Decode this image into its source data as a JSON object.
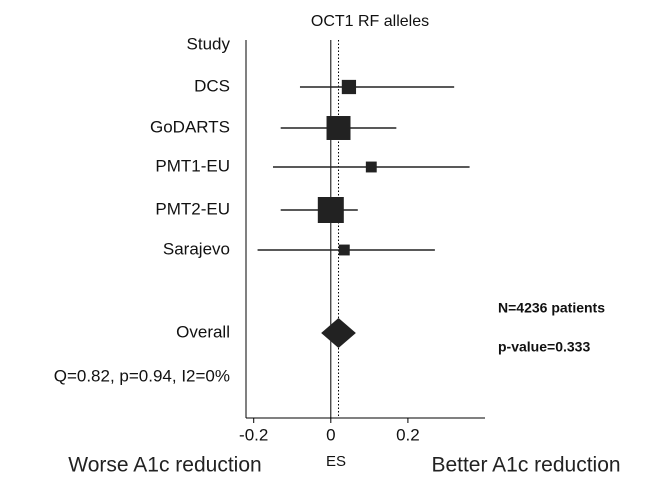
{
  "chart_data": {
    "type": "forest",
    "title": "OCT1 RF alleles",
    "column_label": "Study",
    "categories": [
      "DCS",
      "GoDARTS",
      "PMT1-EU",
      "PMT2-EU",
      "Sarajevo"
    ],
    "values": [
      0.047,
      0.02,
      0.105,
      0.0,
      0.035
    ],
    "lower": [
      -0.08,
      -0.13,
      -0.15,
      -0.13,
      -0.19
    ],
    "upper": [
      0.32,
      0.17,
      0.36,
      0.07,
      0.27
    ],
    "weights": [
      12,
      34,
      7,
      40,
      7
    ],
    "overall": {
      "label": "Overall",
      "value": 0.02,
      "lower": -0.025,
      "upper": 0.065
    },
    "heterogeneity": "Q=0.82, p=0.94, I2=0%",
    "annotations": [
      "N=4236 patients",
      "p-value=0.333"
    ],
    "xlabel": "ES",
    "left_label": "Worse A1c reduction",
    "right_label": "Better A1c reduction",
    "xlim": [
      -0.22,
      0.4
    ],
    "xticks": [
      -0.2,
      0,
      0.2
    ],
    "color": "#222222"
  }
}
